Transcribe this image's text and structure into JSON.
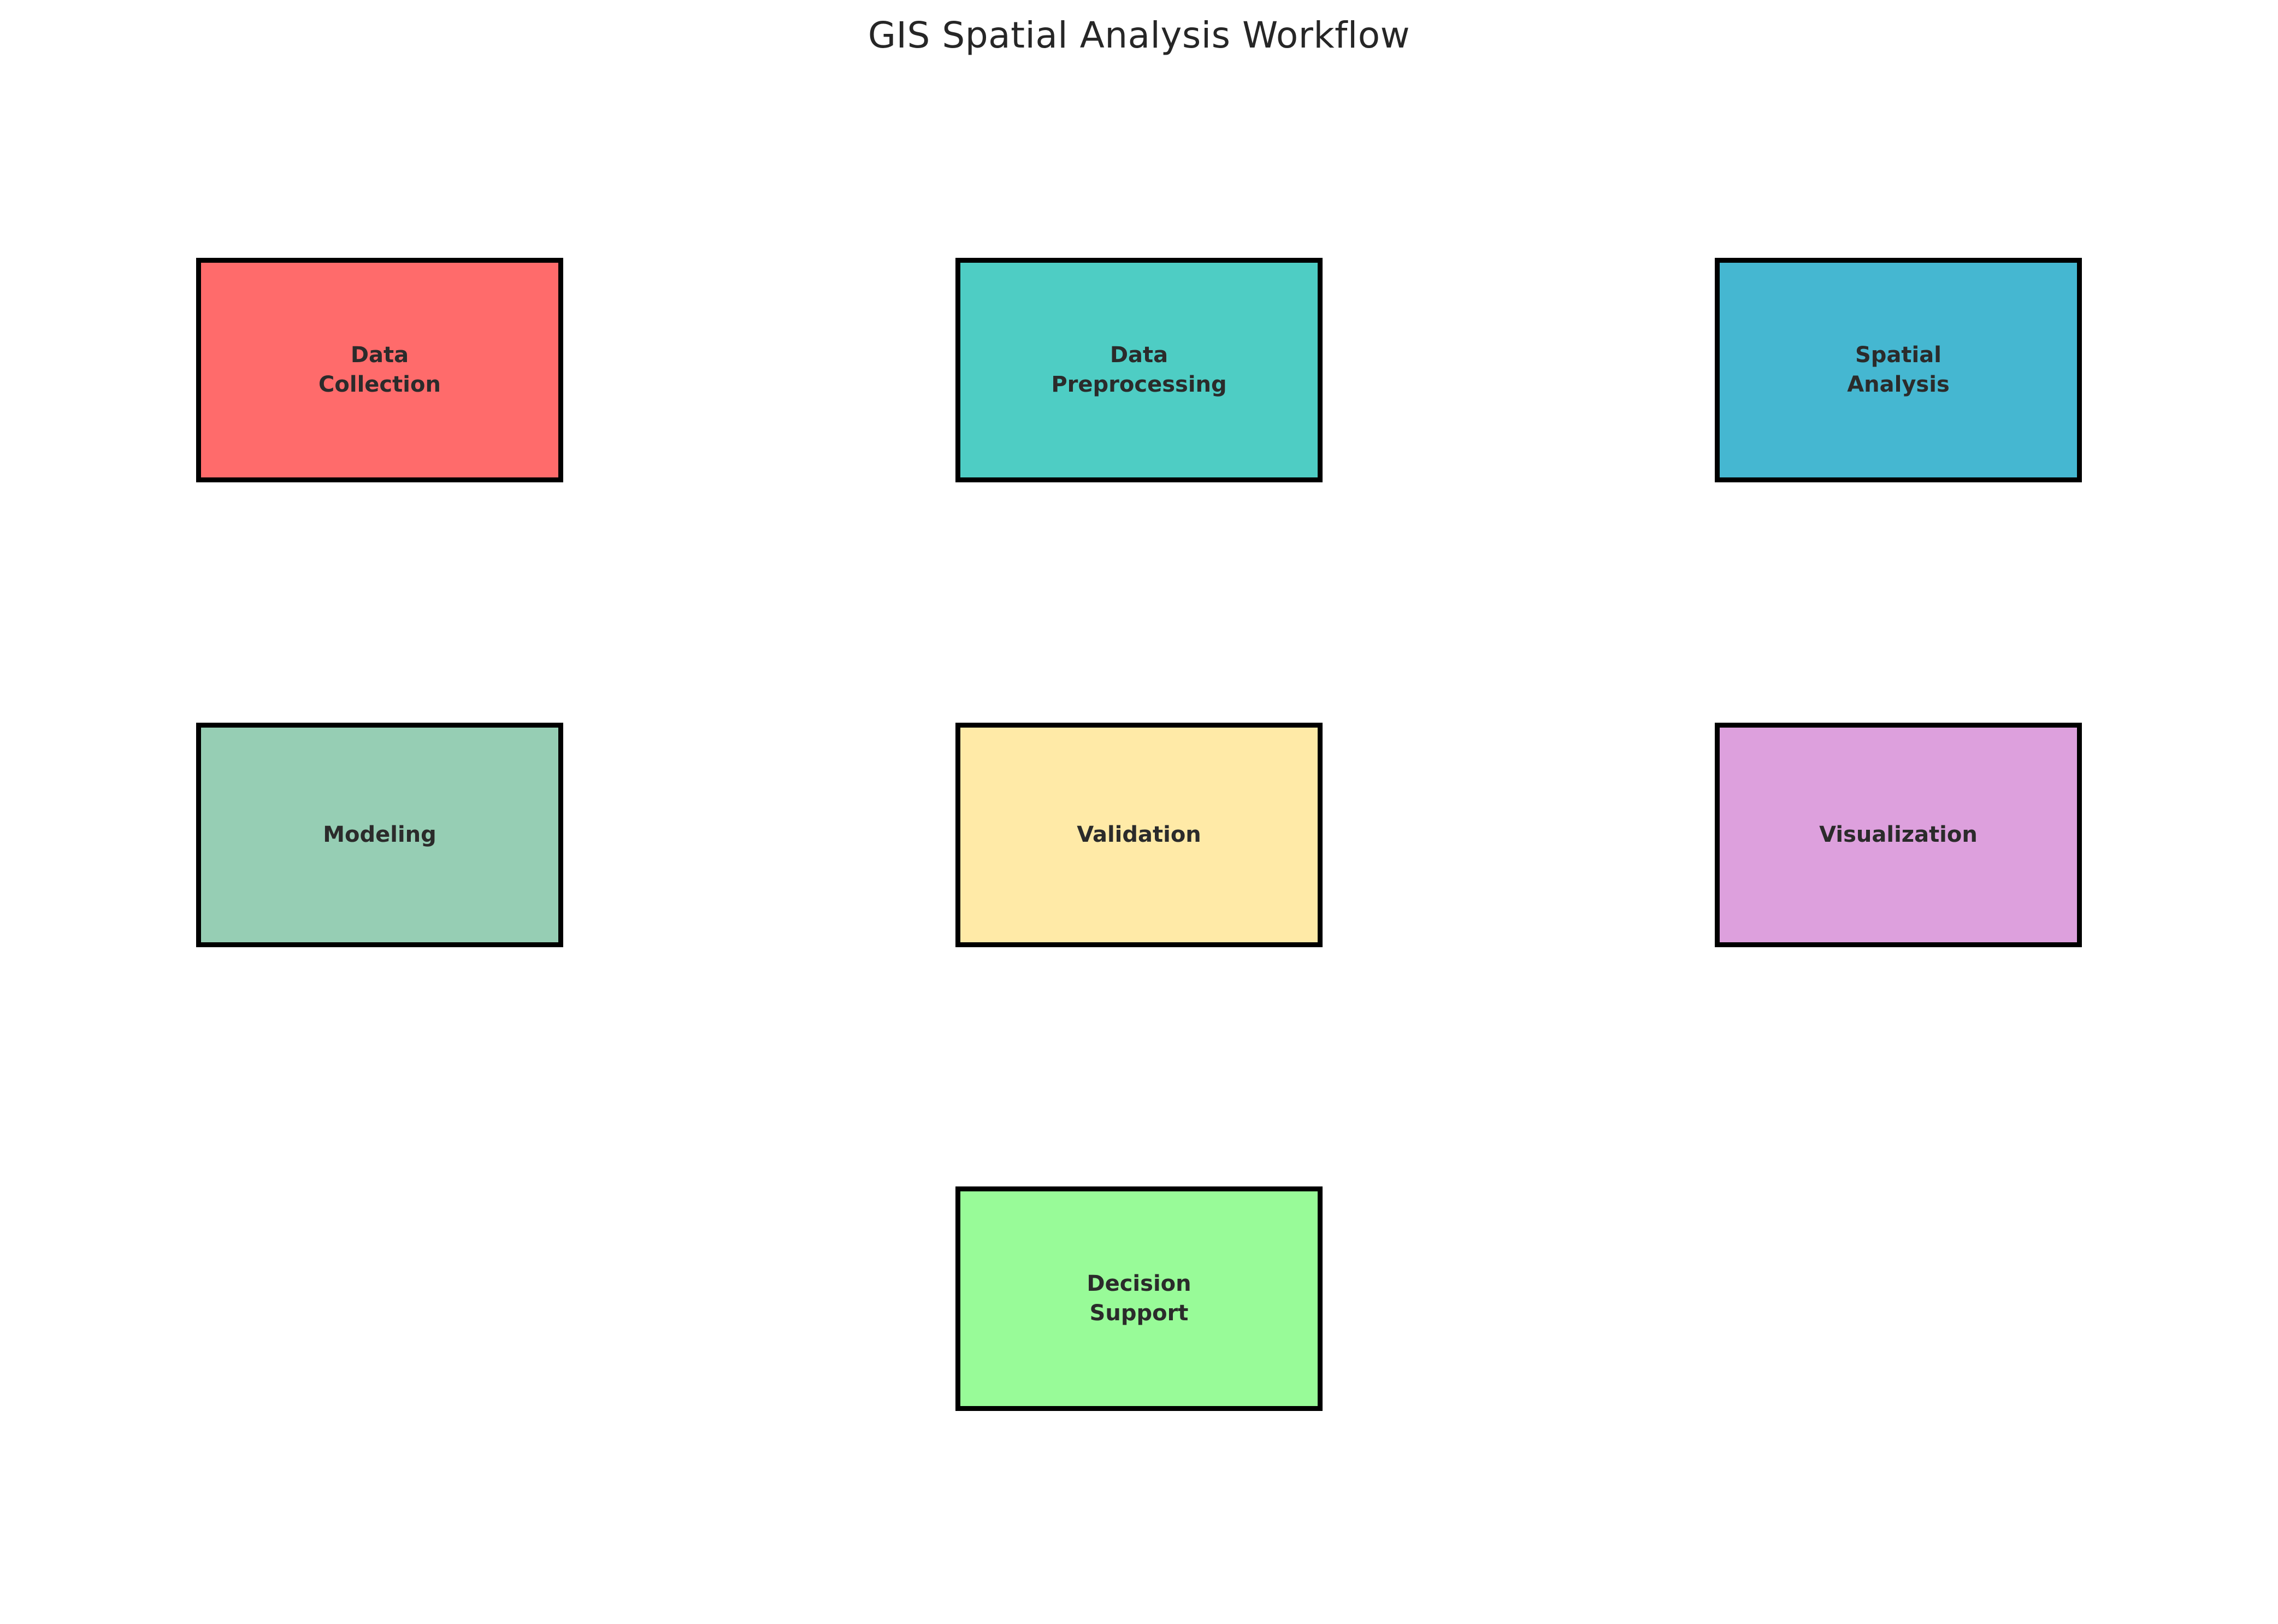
{
  "title": "GIS Spatial Analysis Workflow",
  "colors": {
    "background": "#ffffff",
    "box_border": "#000000",
    "title_text": "#262626",
    "label_text": "#2b2b2b"
  },
  "diagram": {
    "type": "workflow-grid",
    "rows": 3,
    "columns": 3,
    "connectors": "none"
  },
  "nodes": [
    {
      "id": "data-collection",
      "label": "Data\nCollection",
      "color": "#FF6B6B",
      "row": 0,
      "col": 0
    },
    {
      "id": "data-preprocessing",
      "label": "Data\nPreprocessing",
      "color": "#4ECDC4",
      "row": 0,
      "col": 1
    },
    {
      "id": "spatial-analysis",
      "label": "Spatial\nAnalysis",
      "color": "#45B7D1",
      "row": 0,
      "col": 2
    },
    {
      "id": "modeling",
      "label": "Modeling",
      "color": "#96CEB4",
      "row": 1,
      "col": 0
    },
    {
      "id": "validation",
      "label": "Validation",
      "color": "#FFEAA7",
      "row": 1,
      "col": 1
    },
    {
      "id": "visualization",
      "label": "Visualization",
      "color": "#DDA0DD",
      "row": 1,
      "col": 2
    },
    {
      "id": "decision-support",
      "label": "Decision\nSupport",
      "color": "#98FB98",
      "row": 2,
      "col": 1
    }
  ]
}
